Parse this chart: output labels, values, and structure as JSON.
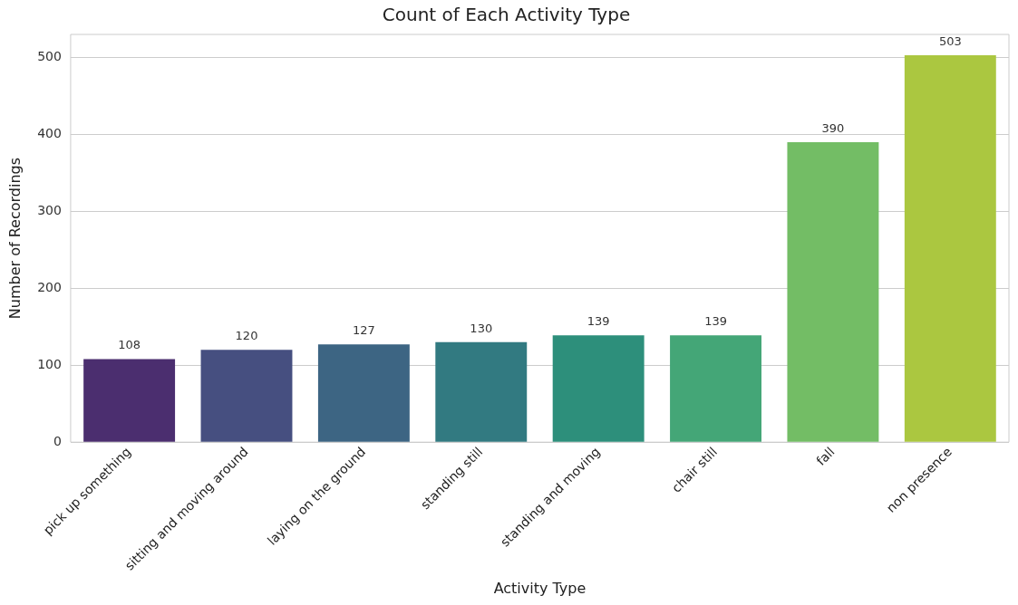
{
  "chart_data": {
    "type": "bar",
    "title": "Count of Each Activity Type",
    "xlabel": "Activity Type",
    "ylabel": "Number of Recordings",
    "categories": [
      "pick up something",
      "sitting and moving around",
      "laying on the ground",
      "standing still",
      "standing and moving",
      "chair still",
      "fall",
      "non presence"
    ],
    "values": [
      108,
      120,
      127,
      130,
      139,
      139,
      390,
      503
    ],
    "colors": [
      "#4b2e6f",
      "#464f80",
      "#3d6583",
      "#327a81",
      "#2d8f7b",
      "#44a677",
      "#73bd65",
      "#abc740"
    ],
    "ylim": [
      0,
      530
    ],
    "yticks": [
      0,
      100,
      200,
      300,
      400,
      500
    ],
    "grid": "y",
    "data_labels": true
  }
}
